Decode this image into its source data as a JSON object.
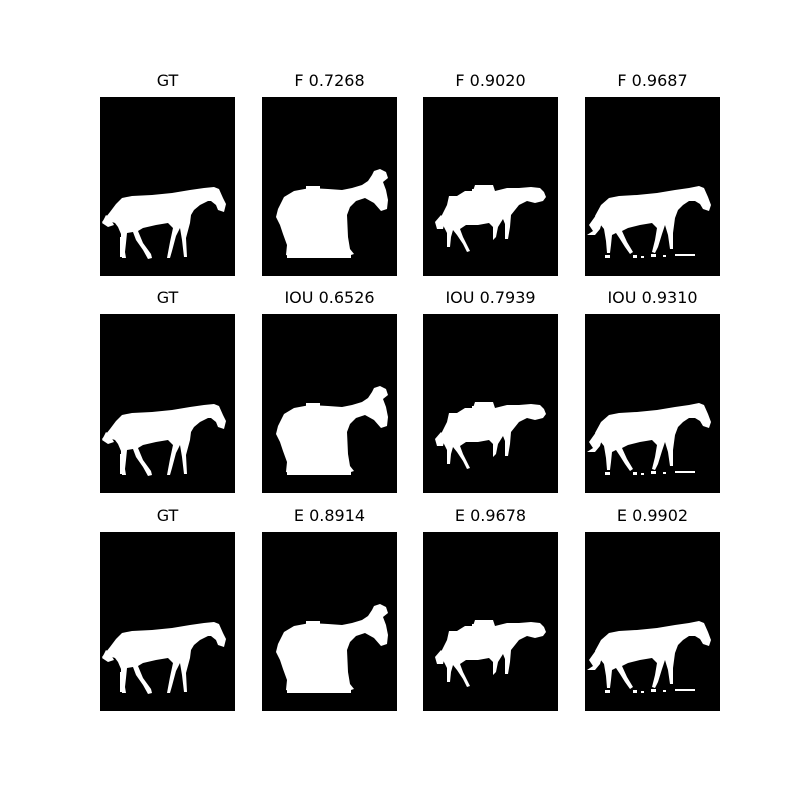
{
  "figure": {
    "background": "#ffffff",
    "mask_background": "#000000",
    "mask_foreground": "#ffffff",
    "rows": [
      {
        "metric": "F",
        "panels": [
          {
            "title": "GT",
            "variant": "gt"
          },
          {
            "title": "F 0.7268",
            "variant": "coarse",
            "score": 0.7268
          },
          {
            "title": "F 0.9020",
            "variant": "blocky",
            "score": 0.902
          },
          {
            "title": "F 0.9687",
            "variant": "fine",
            "score": 0.9687
          }
        ]
      },
      {
        "metric": "IOU",
        "panels": [
          {
            "title": "GT",
            "variant": "gt"
          },
          {
            "title": "IOU 0.6526",
            "variant": "coarse",
            "score": 0.6526
          },
          {
            "title": "IOU 0.7939",
            "variant": "blocky",
            "score": 0.7939
          },
          {
            "title": "IOU 0.9310",
            "variant": "fine",
            "score": 0.931
          }
        ]
      },
      {
        "metric": "E",
        "panels": [
          {
            "title": "GT",
            "variant": "gt"
          },
          {
            "title": "E 0.8914",
            "variant": "coarse",
            "score": 0.8914
          },
          {
            "title": "E 0.9678",
            "variant": "blocky",
            "score": 0.9678
          },
          {
            "title": "E 0.9902",
            "variant": "fine",
            "score": 0.9902
          }
        ]
      }
    ]
  }
}
